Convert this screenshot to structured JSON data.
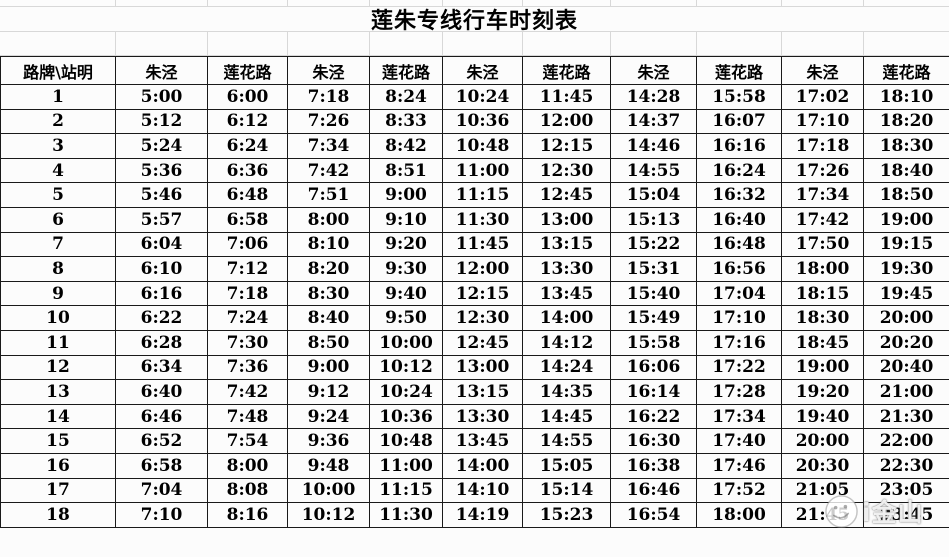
{
  "title": "莲朱专线行车时刻表",
  "colors": {
    "border": "#1a1a1a",
    "gridline": "#d8d8d8",
    "background": "#fcfcfc",
    "text": "#000000"
  },
  "table": {
    "header": [
      "路牌\\站明",
      "朱泾",
      "莲花路",
      "朱泾",
      "莲花路",
      "朱泾",
      "莲花路",
      "朱泾",
      "莲花路",
      "朱泾",
      "莲花路"
    ],
    "rows": [
      [
        "1",
        "5:00",
        "6:00",
        "7:18",
        "8:24",
        "10:24",
        "11:45",
        "14:28",
        "15:58",
        "17:02",
        "18:10"
      ],
      [
        "2",
        "5:12",
        "6:12",
        "7:26",
        "8:33",
        "10:36",
        "12:00",
        "14:37",
        "16:07",
        "17:10",
        "18:20"
      ],
      [
        "3",
        "5:24",
        "6:24",
        "7:34",
        "8:42",
        "10:48",
        "12:15",
        "14:46",
        "16:16",
        "17:18",
        "18:30"
      ],
      [
        "4",
        "5:36",
        "6:36",
        "7:42",
        "8:51",
        "11:00",
        "12:30",
        "14:55",
        "16:24",
        "17:26",
        "18:40"
      ],
      [
        "5",
        "5:46",
        "6:48",
        "7:51",
        "9:00",
        "11:15",
        "12:45",
        "15:04",
        "16:32",
        "17:34",
        "18:50"
      ],
      [
        "6",
        "5:57",
        "6:58",
        "8:00",
        "9:10",
        "11:30",
        "13:00",
        "15:13",
        "16:40",
        "17:42",
        "19:00"
      ],
      [
        "7",
        "6:04",
        "7:06",
        "8:10",
        "9:20",
        "11:45",
        "13:15",
        "15:22",
        "16:48",
        "17:50",
        "19:15"
      ],
      [
        "8",
        "6:10",
        "7:12",
        "8:20",
        "9:30",
        "12:00",
        "13:30",
        "15:31",
        "16:56",
        "18:00",
        "19:30"
      ],
      [
        "9",
        "6:16",
        "7:18",
        "8:30",
        "9:40",
        "12:15",
        "13:45",
        "15:40",
        "17:04",
        "18:15",
        "19:45"
      ],
      [
        "10",
        "6:22",
        "7:24",
        "8:40",
        "9:50",
        "12:30",
        "14:00",
        "15:49",
        "17:10",
        "18:30",
        "20:00"
      ],
      [
        "11",
        "6:28",
        "7:30",
        "8:50",
        "10:00",
        "12:45",
        "14:12",
        "15:58",
        "17:16",
        "18:45",
        "20:20"
      ],
      [
        "12",
        "6:34",
        "7:36",
        "9:00",
        "10:12",
        "13:00",
        "14:24",
        "16:06",
        "17:22",
        "19:00",
        "20:40"
      ],
      [
        "13",
        "6:40",
        "7:42",
        "9:12",
        "10:24",
        "13:15",
        "14:35",
        "16:14",
        "17:28",
        "19:20",
        "21:00"
      ],
      [
        "14",
        "6:46",
        "7:48",
        "9:24",
        "10:36",
        "13:30",
        "14:45",
        "16:22",
        "17:34",
        "19:40",
        "21:30"
      ],
      [
        "15",
        "6:52",
        "7:54",
        "9:36",
        "10:48",
        "13:45",
        "14:55",
        "16:30",
        "17:40",
        "20:00",
        "22:00"
      ],
      [
        "16",
        "6:58",
        "8:00",
        "9:48",
        "11:00",
        "14:00",
        "15:05",
        "16:38",
        "17:46",
        "20:30",
        "22:30"
      ],
      [
        "17",
        "7:04",
        "8:08",
        "10:00",
        "11:15",
        "14:10",
        "15:14",
        "16:46",
        "17:52",
        "21:05",
        "23:05"
      ],
      [
        "18",
        "7:10",
        "8:16",
        "10:12",
        "11:30",
        "14:19",
        "15:23",
        "16:54",
        "18:00",
        "21:45",
        "23:45"
      ]
    ]
  },
  "watermark": {
    "text": "i金山"
  }
}
